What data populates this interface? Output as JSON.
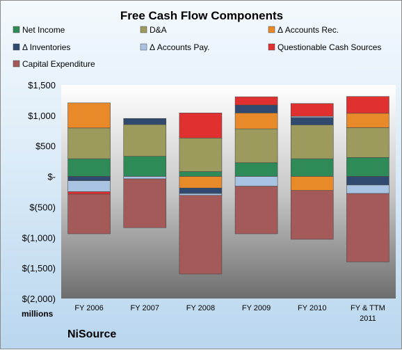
{
  "chart_data": {
    "type": "bar",
    "stacked": true,
    "title": "Free Cash Flow Components",
    "company": "NiSource",
    "units_label": "millions",
    "categories": [
      "FY 2006",
      "FY 2007",
      "FY 2008",
      "FY 2009",
      "FY 2010",
      "FY & TTM 2011"
    ],
    "ylim": [
      -2000,
      1500
    ],
    "yticks": [
      1500,
      1000,
      500,
      0,
      -500,
      -1000,
      -1500,
      -2000
    ],
    "ytick_labels": [
      "$1,500",
      "$1,000",
      "$500",
      "$-",
      "$(500)",
      "$(1,000)",
      "$(1,500)",
      "$(2,000)"
    ],
    "legend_position": "top",
    "grid": false,
    "series": [
      {
        "name": "Net Income",
        "color": "#2e8b57",
        "values": [
          290,
          330,
          80,
          225,
          290,
          310
        ]
      },
      {
        "name": "D&A",
        "color": "#9c9a5c",
        "values": [
          505,
          520,
          550,
          555,
          555,
          490
        ]
      },
      {
        "name": "Δ Accounts Rec.",
        "color": "#e98a2a",
        "values": [
          410,
          0,
          -190,
          260,
          -230,
          235
        ]
      },
      {
        "name": "Δ Inventories",
        "color": "#2f4a6e",
        "values": [
          -70,
          100,
          -90,
          130,
          120,
          -140
        ]
      },
      {
        "name": "Δ Accounts Pay.",
        "color": "#a9c3e2",
        "values": [
          -180,
          -40,
          -30,
          -160,
          20,
          -140
        ]
      },
      {
        "name": "Questionable Cash Sources",
        "color": "#e03030",
        "values": [
          -40,
          0,
          410,
          135,
          210,
          275
        ]
      },
      {
        "name": "Capital Expenditure",
        "color": "#a55a5a",
        "values": [
          -650,
          -800,
          -1290,
          -780,
          -800,
          -1120
        ]
      }
    ]
  }
}
